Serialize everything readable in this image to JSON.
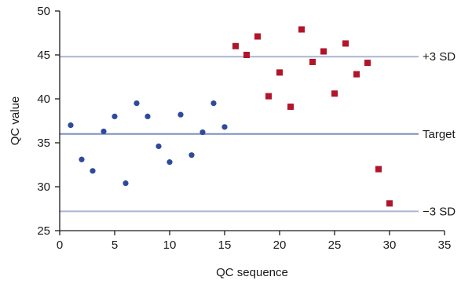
{
  "chart_data": {
    "type": "scatter",
    "xlabel": "QC sequence",
    "ylabel": "QC value",
    "xlim": [
      0,
      35
    ],
    "ylim": [
      25,
      50
    ],
    "xticks": [
      0,
      5,
      10,
      15,
      20,
      25,
      30,
      35
    ],
    "yticks": [
      25,
      30,
      35,
      40,
      45,
      50
    ],
    "grid": false,
    "reference_lines": [
      {
        "label": "+3 SD",
        "y": 44.8,
        "color": "#a9b6d4"
      },
      {
        "label": "Target",
        "y": 36.0,
        "color": "#7d8fbf"
      },
      {
        "label": "−3 SD",
        "y": 27.2,
        "color": "#a9b6d4"
      }
    ],
    "series": [
      {
        "marker": "circle",
        "color": "#2e4b9b",
        "points": [
          [
            1,
            37.0
          ],
          [
            2,
            33.1
          ],
          [
            3,
            31.8
          ],
          [
            4,
            36.3
          ],
          [
            5,
            38.0
          ],
          [
            6,
            30.4
          ],
          [
            7,
            39.5
          ],
          [
            8,
            38.0
          ],
          [
            9,
            34.6
          ],
          [
            10,
            32.8
          ],
          [
            11,
            38.2
          ],
          [
            12,
            33.6
          ],
          [
            13,
            36.2
          ],
          [
            14,
            39.5
          ],
          [
            15,
            36.8
          ]
        ]
      },
      {
        "marker": "square",
        "color": "#b2142a",
        "points": [
          [
            16,
            46.0
          ],
          [
            17,
            45.0
          ],
          [
            18,
            47.1
          ],
          [
            19,
            40.3
          ],
          [
            20,
            43.0
          ],
          [
            21,
            39.1
          ],
          [
            22,
            47.9
          ],
          [
            23,
            44.2
          ],
          [
            24,
            45.4
          ],
          [
            25,
            40.6
          ],
          [
            26,
            46.3
          ],
          [
            27,
            42.8
          ],
          [
            28,
            44.1
          ],
          [
            29,
            32.0
          ],
          [
            30,
            28.1
          ]
        ]
      }
    ]
  }
}
